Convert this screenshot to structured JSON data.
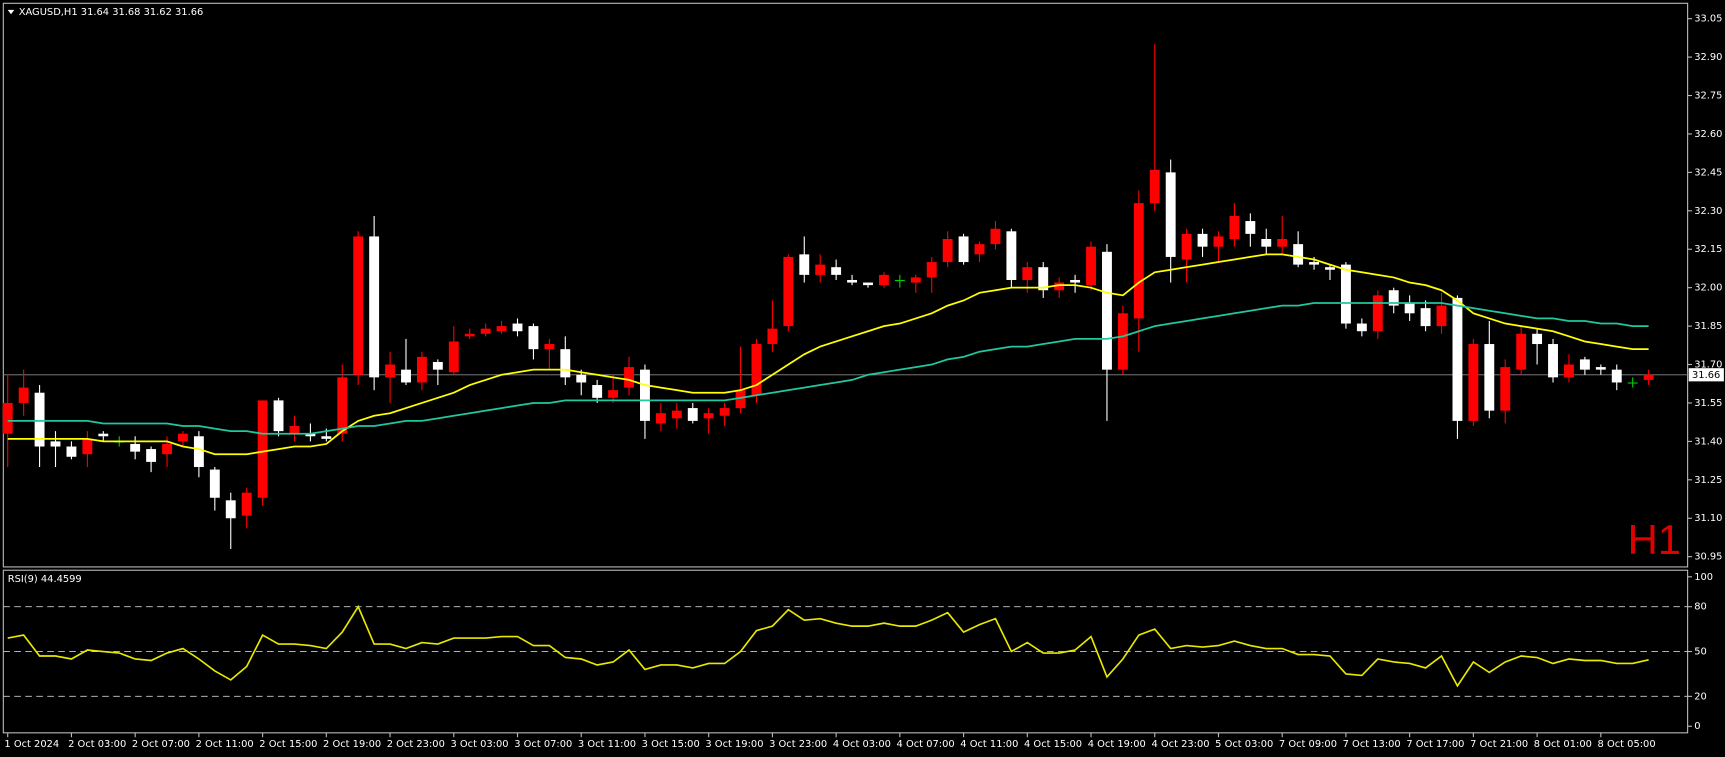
{
  "chart_data": [
    {
      "type": "candlestick",
      "title": "XAGUSD,H1  31.64 31.68 31.62 31.66",
      "watermark": "H1",
      "categories": [
        "1 Oct 2024",
        null,
        null,
        null,
        "2 Oct 03:00",
        null,
        null,
        null,
        "2 Oct 07:00",
        null,
        null,
        null,
        "2 Oct 11:00",
        null,
        null,
        null,
        "2 Oct 15:00",
        null,
        null,
        null,
        "2 Oct 19:00",
        null,
        null,
        null,
        "2 Oct 23:00",
        null,
        null,
        null,
        "3 Oct 03:00",
        null,
        null,
        null,
        "3 Oct 07:00",
        null,
        null,
        null,
        "3 Oct 11:00",
        null,
        null,
        null,
        "3 Oct 15:00",
        null,
        null,
        null,
        "3 Oct 19:00",
        null,
        null,
        null,
        "3 Oct 23:00",
        null,
        null,
        null,
        "4 Oct 03:00",
        null,
        null,
        null,
        "4 Oct 07:00",
        null,
        null,
        null,
        "4 Oct 11:00",
        null,
        null,
        null,
        "4 Oct 15:00",
        null,
        null,
        null,
        "4 Oct 19:00",
        null,
        null,
        null,
        "4 Oct 23:00",
        null,
        null,
        null,
        "5 Oct 03:00",
        null,
        null,
        null,
        "7 Oct 09:00",
        null,
        null,
        null,
        "7 Oct 13:00",
        null,
        null,
        null,
        "7 Oct 17:00",
        null,
        null,
        null,
        "7 Oct 21:00",
        null,
        null,
        null,
        "8 Oct 01:00",
        null,
        null,
        null,
        "8 Oct 05:00",
        null,
        null,
        null
      ],
      "open": [
        31.43,
        31.55,
        31.59,
        31.4,
        31.38,
        31.35,
        31.43,
        31.4,
        31.39,
        31.37,
        31.35,
        31.4,
        31.42,
        31.29,
        31.17,
        31.11,
        31.18,
        31.56,
        31.43,
        31.43,
        31.42,
        31.43,
        31.66,
        32.2,
        31.65,
        31.68,
        31.63,
        31.71,
        31.67,
        31.81,
        31.82,
        31.83,
        31.86,
        31.85,
        31.76,
        31.76,
        31.66,
        31.62,
        31.57,
        31.61,
        31.68,
        31.47,
        31.49,
        31.53,
        31.49,
        31.5,
        31.53,
        31.58,
        31.78,
        31.85,
        32.13,
        32.05,
        32.08,
        32.03,
        32.02,
        32.01,
        32.03,
        32.02,
        32.04,
        32.1,
        32.2,
        32.13,
        32.17,
        32.22,
        32.03,
        32.08,
        31.99,
        32.03,
        32.01,
        32.14,
        31.68,
        31.88,
        32.33,
        32.45,
        32.11,
        32.21,
        32.16,
        32.19,
        32.26,
        32.19,
        32.16,
        32.17,
        32.1,
        32.08,
        32.09,
        31.86,
        31.83,
        31.99,
        31.94,
        31.92,
        31.85,
        31.96,
        31.48,
        31.78,
        31.52,
        31.68,
        31.82,
        31.78,
        31.65,
        31.72,
        31.69,
        31.68,
        31.63,
        31.64
      ],
      "high": [
        31.66,
        31.68,
        31.62,
        31.44,
        31.4,
        31.44,
        31.44,
        31.42,
        31.42,
        31.38,
        31.42,
        31.44,
        31.44,
        31.3,
        31.2,
        31.22,
        31.56,
        31.57,
        31.5,
        31.47,
        31.45,
        31.7,
        32.22,
        32.28,
        31.75,
        31.8,
        31.75,
        31.72,
        31.85,
        31.84,
        31.86,
        31.87,
        31.88,
        31.86,
        31.8,
        31.81,
        31.68,
        31.64,
        31.66,
        31.73,
        31.7,
        31.55,
        31.55,
        31.55,
        31.53,
        31.55,
        31.77,
        31.8,
        31.95,
        32.13,
        32.2,
        32.13,
        32.11,
        32.05,
        32.02,
        32.06,
        32.05,
        32.05,
        32.12,
        32.22,
        32.21,
        32.18,
        32.26,
        32.23,
        32.1,
        32.1,
        32.04,
        32.05,
        32.18,
        32.17,
        31.93,
        32.38,
        32.95,
        32.5,
        32.23,
        32.23,
        32.22,
        32.33,
        32.29,
        32.23,
        32.28,
        32.22,
        32.12,
        32.09,
        32.1,
        31.88,
        31.99,
        32.0,
        31.97,
        31.95,
        31.98,
        31.97,
        31.8,
        31.87,
        31.72,
        31.85,
        31.84,
        31.8,
        31.74,
        31.73,
        31.7,
        31.7,
        31.65,
        31.68
      ],
      "low": [
        31.3,
        31.5,
        31.3,
        31.3,
        31.33,
        31.3,
        31.4,
        31.38,
        31.33,
        31.28,
        31.3,
        31.38,
        31.26,
        31.13,
        30.98,
        31.06,
        31.15,
        31.42,
        31.4,
        31.4,
        31.4,
        31.4,
        31.62,
        31.6,
        31.55,
        31.62,
        31.6,
        31.62,
        31.66,
        31.8,
        31.81,
        31.82,
        31.81,
        31.72,
        31.68,
        31.62,
        31.58,
        31.55,
        31.55,
        31.58,
        31.41,
        31.44,
        31.45,
        31.47,
        31.43,
        31.46,
        31.51,
        31.55,
        31.75,
        31.83,
        32.02,
        32.02,
        32.03,
        32.01,
        32.0,
        32.0,
        32.0,
        31.98,
        31.98,
        32.08,
        32.09,
        32.1,
        32.15,
        32.0,
        31.98,
        31.96,
        31.96,
        31.98,
        31.99,
        31.48,
        31.66,
        31.75,
        32.3,
        32.02,
        32.02,
        32.12,
        32.1,
        32.16,
        32.16,
        32.13,
        32.13,
        32.08,
        32.07,
        32.03,
        31.84,
        31.81,
        31.8,
        31.9,
        31.87,
        31.83,
        31.82,
        31.41,
        31.46,
        31.49,
        31.47,
        31.66,
        31.7,
        31.63,
        31.63,
        31.66,
        31.66,
        31.6,
        31.61,
        31.62
      ],
      "close": [
        31.55,
        31.61,
        31.38,
        31.38,
        31.34,
        31.41,
        31.42,
        31.4,
        31.36,
        31.32,
        31.39,
        31.43,
        31.3,
        31.18,
        31.1,
        31.2,
        31.56,
        31.44,
        31.46,
        31.42,
        31.41,
        31.65,
        32.2,
        31.65,
        31.7,
        31.63,
        31.73,
        31.68,
        31.79,
        31.82,
        31.84,
        31.85,
        31.83,
        31.76,
        31.78,
        31.65,
        31.63,
        31.57,
        31.6,
        31.69,
        31.48,
        31.51,
        31.52,
        31.48,
        31.51,
        31.53,
        31.6,
        31.78,
        31.84,
        32.12,
        32.05,
        32.09,
        32.05,
        32.02,
        32.01,
        32.05,
        32.03,
        32.04,
        32.1,
        32.19,
        32.1,
        32.17,
        32.23,
        32.03,
        32.08,
        31.99,
        32.02,
        32.02,
        32.16,
        31.68,
        31.9,
        32.33,
        32.46,
        32.12,
        32.21,
        32.16,
        32.2,
        32.28,
        32.21,
        32.16,
        32.19,
        32.09,
        32.09,
        32.07,
        31.86,
        31.83,
        31.97,
        31.93,
        31.9,
        31.85,
        31.93,
        31.48,
        31.78,
        31.52,
        31.69,
        31.82,
        31.78,
        31.65,
        31.7,
        31.68,
        31.68,
        31.63,
        31.63,
        31.66
      ],
      "up_color": "#ff0000",
      "down_color": "#ffffff",
      "doji_color": "#00d000",
      "overlays": [
        {
          "color": "#ffff00",
          "values": [
            31.41,
            31.41,
            31.41,
            31.41,
            31.41,
            31.41,
            31.4,
            31.4,
            31.4,
            31.4,
            31.4,
            31.38,
            31.37,
            31.35,
            31.35,
            31.35,
            31.36,
            31.37,
            31.38,
            31.38,
            31.39,
            31.44,
            31.48,
            31.5,
            31.51,
            31.53,
            31.55,
            31.57,
            31.59,
            31.62,
            31.64,
            31.66,
            31.67,
            31.68,
            31.68,
            31.68,
            31.67,
            31.66,
            31.65,
            31.64,
            31.62,
            31.61,
            31.6,
            31.59,
            31.59,
            31.59,
            31.6,
            31.62,
            31.66,
            31.7,
            31.74,
            31.77,
            31.79,
            31.81,
            31.83,
            31.85,
            31.86,
            31.88,
            31.9,
            31.93,
            31.95,
            31.98,
            31.99,
            32.0,
            32.0,
            32.0,
            32.01,
            32.01,
            32.0,
            31.98,
            31.97,
            32.02,
            32.06,
            32.07,
            32.08,
            32.09,
            32.1,
            32.11,
            32.12,
            32.13,
            32.13,
            32.12,
            32.11,
            32.09,
            32.07,
            32.06,
            32.05,
            32.04,
            32.02,
            32.01,
            31.99,
            31.95,
            31.9,
            31.88,
            31.86,
            31.85,
            31.84,
            31.83,
            31.81,
            31.79,
            31.78,
            31.77,
            31.76,
            31.76
          ]
        },
        {
          "color": "#20c8a0",
          "values": [
            31.48,
            31.48,
            31.48,
            31.48,
            31.48,
            31.48,
            31.47,
            31.47,
            31.47,
            31.47,
            31.47,
            31.46,
            31.46,
            31.45,
            31.44,
            31.44,
            31.43,
            31.43,
            31.43,
            31.43,
            31.44,
            31.45,
            31.46,
            31.46,
            31.47,
            31.48,
            31.48,
            31.49,
            31.5,
            31.51,
            31.52,
            31.53,
            31.54,
            31.55,
            31.55,
            31.56,
            31.56,
            31.56,
            31.56,
            31.56,
            31.56,
            31.56,
            31.56,
            31.56,
            31.56,
            31.56,
            31.57,
            31.58,
            31.59,
            31.6,
            31.61,
            31.62,
            31.63,
            31.64,
            31.66,
            31.67,
            31.68,
            31.69,
            31.7,
            31.72,
            31.73,
            31.75,
            31.76,
            31.77,
            31.77,
            31.78,
            31.79,
            31.8,
            31.8,
            31.8,
            31.81,
            31.83,
            31.85,
            31.86,
            31.87,
            31.88,
            31.89,
            31.9,
            31.91,
            31.92,
            31.93,
            31.93,
            31.94,
            31.94,
            31.94,
            31.94,
            31.94,
            31.94,
            31.94,
            31.94,
            31.94,
            31.93,
            31.92,
            31.91,
            31.9,
            31.89,
            31.88,
            31.88,
            31.87,
            31.87,
            31.86,
            31.86,
            31.85,
            31.85
          ]
        }
      ],
      "current_price": 31.66,
      "ylim": [
        30.91,
        33.11
      ],
      "yticks": [
        33.05,
        {
          "value": 32.9,
          "label": "32.90"
        },
        32.75,
        {
          "value": 32.6,
          "label": "32.60"
        },
        32.45,
        {
          "value": 32.3,
          "label": "32.30"
        },
        32.15,
        {
          "value": 32.0,
          "label": "32.00"
        },
        31.85,
        {
          "value": 31.7,
          "label": "31.70"
        },
        31.55,
        {
          "value": 31.4,
          "label": "31.40"
        },
        31.25,
        {
          "value": 31.1,
          "label": "31.10"
        },
        30.95
      ]
    },
    {
      "type": "line",
      "title": "RSI(9) 44.4599",
      "color": "#e8e800",
      "values": [
        59,
        61,
        47,
        47,
        45,
        51,
        50,
        49,
        45,
        44,
        49,
        52,
        45,
        37,
        31,
        40,
        61,
        55,
        55,
        54,
        52,
        63,
        80,
        55,
        55,
        52,
        56,
        55,
        59,
        59,
        59,
        60,
        60,
        54,
        54,
        46,
        45,
        41,
        43,
        51,
        38,
        41,
        41,
        39,
        42,
        42,
        50,
        64,
        67,
        78,
        71,
        72,
        69,
        67,
        67,
        69,
        67,
        67,
        71,
        76,
        63,
        68,
        72,
        50,
        56,
        49,
        49,
        51,
        60,
        33,
        45,
        61,
        65,
        52,
        54,
        53,
        54,
        57,
        54,
        52,
        52,
        48,
        48,
        47,
        35,
        34,
        45,
        43,
        42,
        39,
        47,
        27,
        43,
        36,
        43,
        47,
        46,
        42,
        45,
        44,
        44,
        42,
        42,
        44.46
      ],
      "ylim": [
        0,
        100
      ],
      "yticks": [
        100,
        80,
        50,
        20,
        0
      ],
      "levels": [
        80,
        50,
        20
      ]
    }
  ]
}
